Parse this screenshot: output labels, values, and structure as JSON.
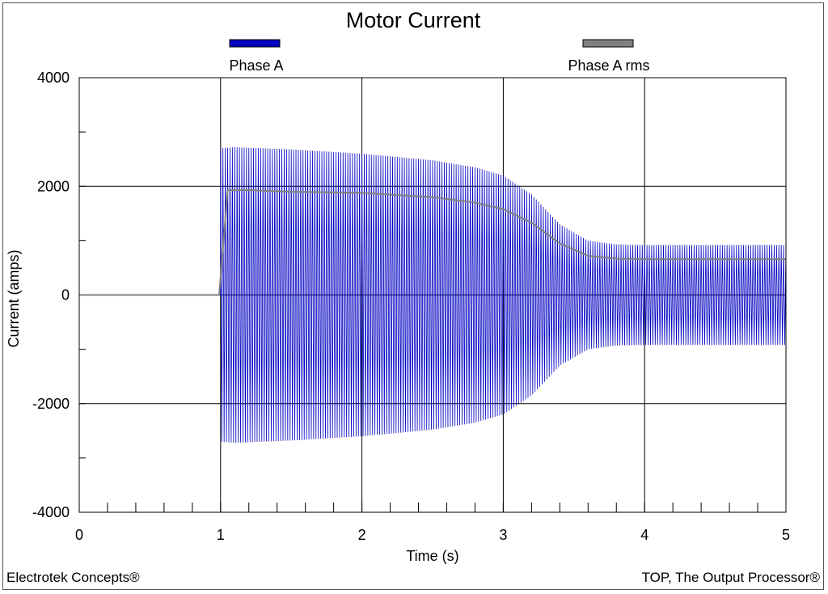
{
  "chart_data": {
    "type": "line",
    "title": "Motor Current",
    "xlabel": "Time (s)",
    "ylabel": "Current  (amps)",
    "xlim": [
      0,
      5
    ],
    "ylim": [
      -4000,
      4000
    ],
    "xticks": [
      "0",
      "1",
      "2",
      "3",
      "4",
      "5"
    ],
    "yticks": [
      "4000",
      "2000",
      "0",
      "-2000",
      "-4000"
    ],
    "grid": true,
    "legend_position": "top",
    "series": [
      {
        "name": "Phase A",
        "color": "#0000c0",
        "style": "oscillating waveform",
        "frequency_hz": 60,
        "envelope_time": [
          0,
          0.999,
          1.0,
          1.1,
          1.5,
          2.0,
          2.5,
          2.8,
          3.0,
          3.2,
          3.4,
          3.6,
          3.8,
          4.0,
          5.0
        ],
        "envelope_amplitude": [
          0,
          0,
          2700,
          2720,
          2680,
          2600,
          2480,
          2350,
          2200,
          1850,
          1300,
          1000,
          930,
          920,
          920
        ]
      },
      {
        "name": "Phase A rms",
        "color": "#808080",
        "x": [
          0,
          0.99,
          1.05,
          1.2,
          1.5,
          2.0,
          2.5,
          2.8,
          3.0,
          3.2,
          3.4,
          3.6,
          3.8,
          4.0,
          5.0
        ],
        "y": [
          0,
          0,
          1930,
          1930,
          1900,
          1880,
          1800,
          1700,
          1580,
          1330,
          950,
          720,
          670,
          660,
          660
        ]
      }
    ]
  },
  "footer": {
    "left": "Electrotek Concepts®",
    "right": "TOP, The Output Processor®"
  }
}
